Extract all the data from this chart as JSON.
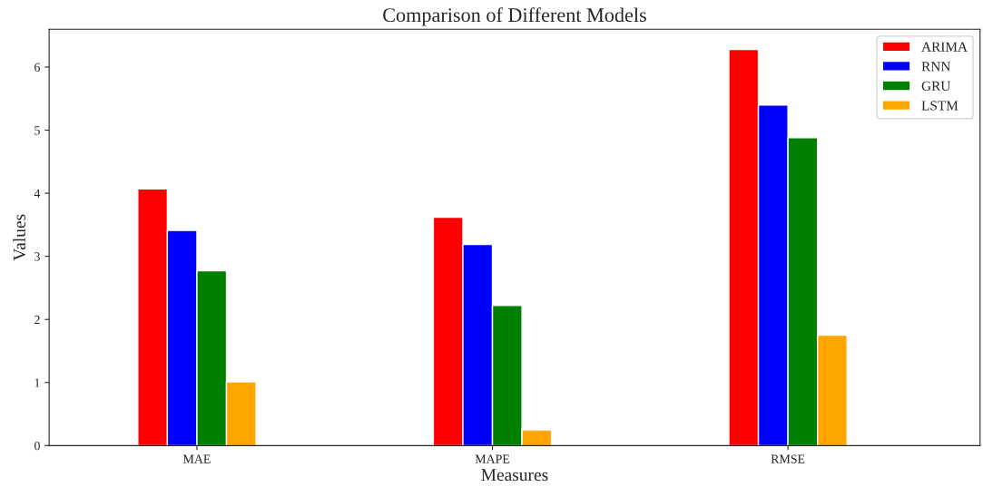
{
  "chart_data": {
    "type": "bar",
    "title": "Comparison of Different Models",
    "xlabel": "Measures",
    "ylabel": "Values",
    "categories": [
      "MAE",
      "MAPE",
      "RMSE"
    ],
    "series": [
      {
        "name": "ARIMA",
        "color": "#ff0000",
        "values": [
          4.07,
          3.62,
          6.28
        ]
      },
      {
        "name": "RNN",
        "color": "#0000ff",
        "values": [
          3.41,
          3.19,
          5.4
        ]
      },
      {
        "name": "GRU",
        "color": "#008000",
        "values": [
          2.77,
          2.22,
          4.88
        ]
      },
      {
        "name": "LSTM",
        "color": "#ffa500",
        "values": [
          1.01,
          0.25,
          1.75
        ]
      }
    ],
    "ylim": [
      0,
      6.6
    ],
    "yticks": [
      0,
      1,
      2,
      3,
      4,
      5,
      6
    ],
    "grid": false,
    "legend": "top right"
  }
}
